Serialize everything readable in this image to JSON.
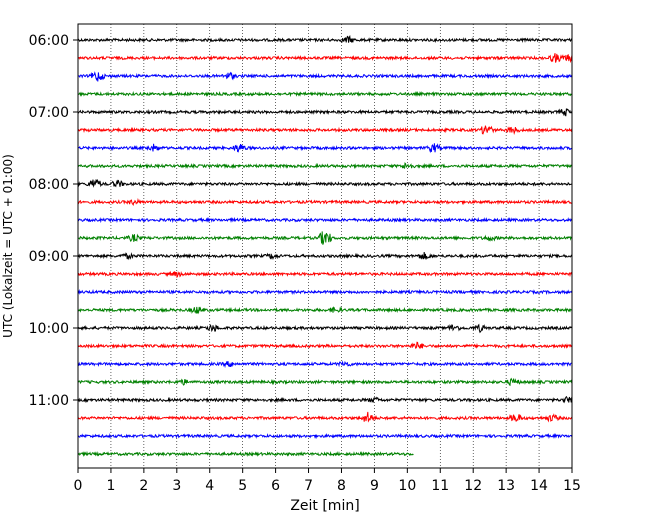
{
  "chart_data": {
    "type": "line",
    "title": "",
    "xlabel": "Zeit  [min]",
    "ylabel": "UTC (Lokalzeit = UTC + 01:00)",
    "xlim": [
      0,
      15
    ],
    "x_ticks": [
      "0",
      "1",
      "2",
      "3",
      "4",
      "5",
      "6",
      "7",
      "8",
      "9",
      "10",
      "11",
      "12",
      "13",
      "14",
      "15"
    ],
    "y_ticks": [
      {
        "label": "06:00",
        "row": 0
      },
      {
        "label": "07:00",
        "row": 4
      },
      {
        "label": "08:00",
        "row": 8
      },
      {
        "label": "09:00",
        "row": 12
      },
      {
        "label": "10:00",
        "row": 16
      },
      {
        "label": "11:00",
        "row": 20
      }
    ],
    "grid": "vertical-dotted",
    "row_colors": [
      "#000000",
      "#ff0000",
      "#0000ff",
      "#008000"
    ],
    "traces": [
      {
        "start": "06:00",
        "end_min": 15,
        "events": [
          {
            "x": 8.2,
            "amp": 3
          }
        ]
      },
      {
        "start": "06:15",
        "end_min": 15,
        "events": [
          {
            "x": 14.5,
            "amp": 4
          },
          {
            "x": 14.9,
            "amp": 3
          }
        ]
      },
      {
        "start": "06:30",
        "end_min": 15,
        "events": [
          {
            "x": 0.6,
            "amp": 5
          },
          {
            "x": 4.6,
            "amp": 3
          }
        ]
      },
      {
        "start": "06:45",
        "end_min": 15,
        "events": []
      },
      {
        "start": "07:00",
        "end_min": 15,
        "events": [
          {
            "x": 14.8,
            "amp": 3
          }
        ]
      },
      {
        "start": "07:15",
        "end_min": 15,
        "events": [
          {
            "x": 12.4,
            "amp": 5
          },
          {
            "x": 13.2,
            "amp": 3
          }
        ]
      },
      {
        "start": "07:30",
        "end_min": 15,
        "events": [
          {
            "x": 2.3,
            "amp": 3
          },
          {
            "x": 4.9,
            "amp": 4
          },
          {
            "x": 10.8,
            "amp": 4
          }
        ]
      },
      {
        "start": "07:45",
        "end_min": 15,
        "events": [
          {
            "x": 10.0,
            "amp": 3
          }
        ]
      },
      {
        "start": "08:00",
        "end_min": 15,
        "events": [
          {
            "x": 0.5,
            "amp": 5
          },
          {
            "x": 1.2,
            "amp": 3
          }
        ]
      },
      {
        "start": "08:15",
        "end_min": 15,
        "events": [
          {
            "x": 1.7,
            "amp": 2
          }
        ]
      },
      {
        "start": "08:30",
        "end_min": 15,
        "events": []
      },
      {
        "start": "08:45",
        "end_min": 15,
        "events": [
          {
            "x": 1.7,
            "amp": 3
          },
          {
            "x": 7.5,
            "amp": 8
          },
          {
            "x": 12.5,
            "amp": 2
          }
        ]
      },
      {
        "start": "09:00",
        "end_min": 15,
        "events": [
          {
            "x": 1.5,
            "amp": 2
          },
          {
            "x": 5.9,
            "amp": 2
          },
          {
            "x": 10.5,
            "amp": 3
          }
        ]
      },
      {
        "start": "09:15",
        "end_min": 15,
        "events": [
          {
            "x": 3.0,
            "amp": 2
          }
        ]
      },
      {
        "start": "09:30",
        "end_min": 15,
        "events": []
      },
      {
        "start": "09:45",
        "end_min": 15,
        "events": [
          {
            "x": 3.6,
            "amp": 3
          },
          {
            "x": 7.8,
            "amp": 2
          }
        ]
      },
      {
        "start": "10:00",
        "end_min": 15,
        "events": [
          {
            "x": 4.1,
            "amp": 3
          },
          {
            "x": 11.4,
            "amp": 3
          },
          {
            "x": 12.2,
            "amp": 3
          }
        ]
      },
      {
        "start": "10:15",
        "end_min": 15,
        "events": [
          {
            "x": 10.3,
            "amp": 3
          }
        ]
      },
      {
        "start": "10:30",
        "end_min": 15,
        "events": [
          {
            "x": 4.6,
            "amp": 2
          },
          {
            "x": 8.1,
            "amp": 2
          }
        ]
      },
      {
        "start": "10:45",
        "end_min": 15,
        "events": [
          {
            "x": 3.2,
            "amp": 2
          },
          {
            "x": 13.2,
            "amp": 3
          }
        ]
      },
      {
        "start": "11:00",
        "end_min": 15,
        "events": [
          {
            "x": 9.0,
            "amp": 2
          },
          {
            "x": 14.9,
            "amp": 3
          }
        ]
      },
      {
        "start": "11:15",
        "end_min": 15,
        "events": [
          {
            "x": 8.8,
            "amp": 5
          },
          {
            "x": 13.3,
            "amp": 4
          },
          {
            "x": 14.4,
            "amp": 3
          }
        ]
      },
      {
        "start": "11:30",
        "end_min": 15,
        "events": []
      },
      {
        "start": "11:45",
        "end_min": 10.2,
        "events": []
      }
    ]
  }
}
